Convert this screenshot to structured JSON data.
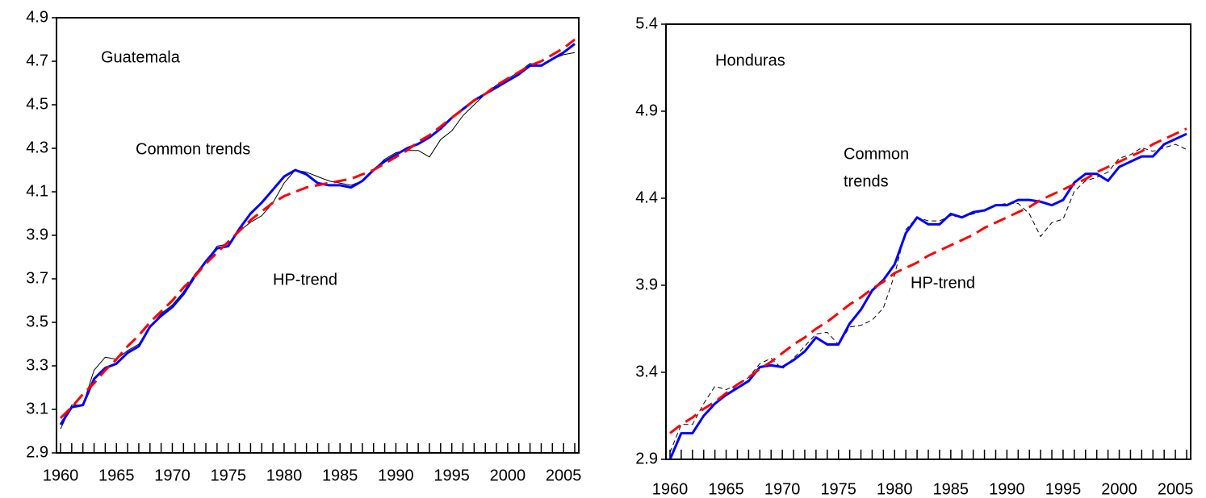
{
  "chart_data": [
    {
      "type": "line",
      "x": [
        1960,
        1961,
        1962,
        1963,
        1964,
        1965,
        1966,
        1967,
        1968,
        1969,
        1970,
        1971,
        1972,
        1973,
        1974,
        1975,
        1976,
        1977,
        1978,
        1979,
        1980,
        1981,
        1982,
        1983,
        1984,
        1985,
        1986,
        1987,
        1988,
        1989,
        1990,
        1991,
        1992,
        1993,
        1994,
        1995,
        1996,
        1997,
        1998,
        1999,
        2000,
        2001,
        2002,
        2003,
        2004,
        2005,
        2006
      ],
      "xlim": [
        1960,
        2006
      ],
      "xticks": [
        1960,
        1965,
        1970,
        1975,
        1980,
        1985,
        1990,
        1995,
        2000,
        2005
      ],
      "ylim": [
        2.9,
        4.9
      ],
      "yticks": [
        2.9,
        3.1,
        3.3,
        3.5,
        3.7,
        3.9,
        4.1,
        4.3,
        4.5,
        4.7,
        4.9
      ],
      "annotations": [
        "Guatemala",
        "Common trends",
        "HP-trend"
      ],
      "series": [
        {
          "color": "#000000",
          "line_style": "thin",
          "values": [
            3.01,
            3.12,
            3.12,
            3.28,
            3.34,
            3.33,
            3.37,
            3.4,
            3.48,
            3.54,
            3.58,
            3.64,
            3.72,
            3.78,
            3.85,
            3.86,
            3.92,
            3.96,
            3.99,
            4.05,
            4.14,
            4.2,
            4.19,
            4.17,
            4.15,
            4.14,
            4.13,
            4.15,
            4.2,
            4.25,
            4.28,
            4.29,
            4.29,
            4.26,
            4.34,
            4.38,
            4.45,
            4.5,
            4.55,
            4.59,
            4.62,
            4.65,
            4.69,
            4.68,
            4.71,
            4.73,
            4.74
          ]
        },
        {
          "color": "#0000ff",
          "line_style": "thick",
          "values": [
            3.03,
            3.11,
            3.12,
            3.24,
            3.29,
            3.31,
            3.36,
            3.39,
            3.48,
            3.53,
            3.57,
            3.63,
            3.71,
            3.78,
            3.84,
            3.85,
            3.93,
            4.0,
            4.05,
            4.11,
            4.17,
            4.2,
            4.18,
            4.14,
            4.13,
            4.13,
            4.12,
            4.15,
            4.2,
            4.24,
            4.27,
            4.3,
            4.32,
            4.35,
            4.39,
            4.44,
            4.48,
            4.52,
            4.55,
            4.58,
            4.61,
            4.64,
            4.68,
            4.68,
            4.71,
            4.74,
            4.78
          ]
        },
        {
          "color": "#ff0000",
          "line_style": "dashed",
          "values": [
            3.06,
            3.11,
            3.17,
            3.22,
            3.28,
            3.33,
            3.39,
            3.44,
            3.5,
            3.55,
            3.6,
            3.66,
            3.71,
            3.77,
            3.82,
            3.87,
            3.92,
            3.97,
            4.01,
            4.05,
            4.08,
            4.1,
            4.12,
            4.13,
            4.14,
            4.15,
            4.16,
            4.18,
            4.2,
            4.23,
            4.26,
            4.29,
            4.33,
            4.36,
            4.4,
            4.44,
            4.48,
            4.52,
            4.55,
            4.59,
            4.62,
            4.65,
            4.68,
            4.7,
            4.73,
            4.76,
            4.8
          ]
        }
      ]
    },
    {
      "type": "line",
      "x": [
        1960,
        1961,
        1962,
        1963,
        1964,
        1965,
        1966,
        1967,
        1968,
        1969,
        1970,
        1971,
        1972,
        1973,
        1974,
        1975,
        1976,
        1977,
        1978,
        1979,
        1980,
        1981,
        1982,
        1983,
        1984,
        1985,
        1986,
        1987,
        1988,
        1989,
        1990,
        1991,
        1992,
        1993,
        1994,
        1995,
        1996,
        1997,
        1998,
        1999,
        2000,
        2001,
        2002,
        2003,
        2004,
        2005,
        2006
      ],
      "xlim": [
        1960,
        2006
      ],
      "xticks": [
        1960,
        1965,
        1970,
        1975,
        1980,
        1985,
        1990,
        1995,
        2000,
        2005
      ],
      "ylim": [
        2.9,
        5.4
      ],
      "yticks": [
        2.9,
        3.4,
        3.9,
        4.4,
        4.9,
        5.4
      ],
      "annotations": [
        "Honduras",
        "Common",
        "trends",
        "HP-trend"
      ],
      "series": [
        {
          "color": "#000000",
          "line_style": "thin-dashed",
          "values": [
            2.94,
            3.1,
            3.1,
            3.22,
            3.32,
            3.3,
            3.33,
            3.37,
            3.45,
            3.48,
            3.42,
            3.48,
            3.55,
            3.62,
            3.63,
            3.56,
            3.66,
            3.67,
            3.7,
            3.77,
            3.96,
            4.22,
            4.29,
            4.27,
            4.27,
            4.3,
            4.29,
            4.31,
            4.33,
            4.36,
            4.37,
            4.37,
            4.31,
            4.18,
            4.26,
            4.28,
            4.44,
            4.5,
            4.52,
            4.55,
            4.63,
            4.65,
            4.69,
            4.67,
            4.69,
            4.71,
            4.68
          ]
        },
        {
          "color": "#0000ff",
          "line_style": "thick",
          "values": [
            2.9,
            3.05,
            3.05,
            3.15,
            3.22,
            3.27,
            3.31,
            3.35,
            3.43,
            3.44,
            3.43,
            3.47,
            3.52,
            3.6,
            3.56,
            3.56,
            3.68,
            3.76,
            3.87,
            3.93,
            4.02,
            4.2,
            4.29,
            4.25,
            4.25,
            4.31,
            4.29,
            4.32,
            4.33,
            4.36,
            4.36,
            4.39,
            4.39,
            4.38,
            4.36,
            4.39,
            4.49,
            4.54,
            4.54,
            4.5,
            4.58,
            4.61,
            4.64,
            4.64,
            4.71,
            4.74,
            4.77
          ]
        },
        {
          "color": "#ff0000",
          "line_style": "dashed",
          "values": [
            3.05,
            3.1,
            3.14,
            3.19,
            3.23,
            3.28,
            3.33,
            3.37,
            3.42,
            3.46,
            3.51,
            3.56,
            3.6,
            3.65,
            3.69,
            3.74,
            3.79,
            3.83,
            3.88,
            3.92,
            3.97,
            4.0,
            4.03,
            4.07,
            4.1,
            4.13,
            4.16,
            4.19,
            4.23,
            4.26,
            4.29,
            4.32,
            4.35,
            4.39,
            4.42,
            4.45,
            4.48,
            4.51,
            4.55,
            4.58,
            4.61,
            4.64,
            4.67,
            4.71,
            4.74,
            4.77,
            4.8
          ]
        }
      ]
    }
  ]
}
